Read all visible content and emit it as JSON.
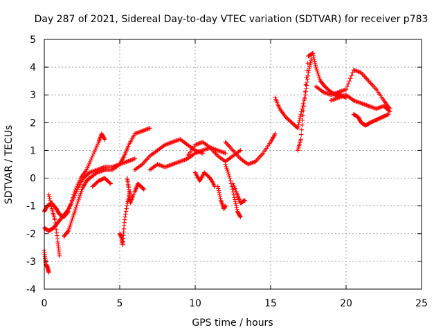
{
  "chart_data": {
    "type": "scatter",
    "title": "Day 287 of 2021, Sidereal Day-to-day VTEC variation (SDTVAR) for receiver p783",
    "xlabel": "GPS time / hours",
    "ylabel": "SDTVAR / TECUs",
    "xlim": [
      0,
      25
    ],
    "ylim": [
      -4,
      5
    ],
    "x_ticks": [
      "0",
      "5",
      "10",
      "15",
      "20",
      "25"
    ],
    "y_ticks": [
      "-4",
      "-3",
      "-2",
      "-1",
      "0",
      "1",
      "2",
      "3",
      "4",
      "5"
    ],
    "grid": true,
    "marker": "+",
    "series": [
      {
        "name": "arc-a",
        "color": "#ff0000",
        "x": [
          0.0,
          0.2,
          0.5,
          0.8,
          1.0,
          1.3,
          1.6,
          2.0,
          2.4,
          2.8,
          3.2,
          3.6,
          3.8,
          4.0
        ],
        "y": [
          -1.2,
          -1.0,
          -0.9,
          -1.1,
          -1.3,
          -1.4,
          -1.2,
          -0.5,
          0.0,
          0.3,
          0.8,
          1.3,
          1.6,
          1.4
        ]
      },
      {
        "name": "arc-b",
        "color": "#ff0000",
        "x": [
          0.0,
          0.3,
          0.6,
          0.9,
          1.2,
          1.5,
          1.8,
          2.2,
          2.6,
          3.0,
          3.5,
          4.0,
          4.5,
          5.0,
          5.5,
          6.0
        ],
        "y": [
          -1.8,
          -1.9,
          -1.8,
          -1.6,
          -1.4,
          -1.2,
          -0.9,
          -0.4,
          0.0,
          0.2,
          0.3,
          0.4,
          0.4,
          0.5,
          0.6,
          0.7
        ]
      },
      {
        "name": "arc-c",
        "color": "#ff0000",
        "x": [
          0.0,
          0.1,
          0.2,
          0.3
        ],
        "y": [
          -2.6,
          -3.1,
          -3.2,
          -3.4
        ]
      },
      {
        "name": "arc-d",
        "color": "#ff0000",
        "x": [
          0.3,
          0.5,
          0.7,
          0.9,
          1.0
        ],
        "y": [
          -0.6,
          -1.1,
          -1.5,
          -2.3,
          -2.8
        ]
      },
      {
        "name": "arc-e",
        "color": "#ff0000",
        "x": [
          1.3,
          1.6,
          1.9,
          2.2,
          2.5,
          2.8,
          3.0
        ],
        "y": [
          -2.1,
          -1.9,
          -1.4,
          -0.9,
          -0.4,
          -0.1,
          0.0
        ]
      },
      {
        "name": "arc-f",
        "color": "#ff0000",
        "x": [
          3.0,
          3.5,
          4.0,
          4.5,
          5.0,
          5.3,
          5.6,
          6.0,
          6.5,
          7.0
        ],
        "y": [
          0.0,
          0.2,
          0.3,
          0.3,
          0.5,
          0.8,
          1.2,
          1.6,
          1.7,
          1.8
        ]
      },
      {
        "name": "arc-g",
        "color": "#ff0000",
        "x": [
          3.2,
          3.6,
          4.0,
          4.4
        ],
        "y": [
          -0.3,
          -0.1,
          0.0,
          -0.2
        ]
      },
      {
        "name": "arc-h",
        "color": "#ff0000",
        "x": [
          5.0,
          5.1,
          5.2,
          5.3,
          5.5,
          5.7
        ],
        "y": [
          -2.0,
          -2.1,
          -2.4,
          -1.6,
          -0.9,
          -0.5
        ]
      },
      {
        "name": "arc-i",
        "color": "#ff0000",
        "x": [
          5.5,
          5.6,
          5.7,
          5.9
        ],
        "y": [
          0.0,
          -0.4,
          -0.9,
          -0.6
        ]
      },
      {
        "name": "arc-j",
        "color": "#ff0000",
        "x": [
          6.0,
          6.2,
          6.4,
          6.6
        ],
        "y": [
          -0.5,
          -0.2,
          -0.3,
          -0.4
        ]
      },
      {
        "name": "arc-k",
        "color": "#ff0000",
        "x": [
          6.0,
          6.5,
          7.0,
          7.5,
          8.0,
          8.5,
          9.0,
          9.5,
          10.0,
          10.5
        ],
        "y": [
          0.3,
          0.5,
          0.8,
          1.0,
          1.2,
          1.3,
          1.4,
          1.2,
          1.0,
          0.9
        ]
      },
      {
        "name": "arc-l",
        "color": "#ff0000",
        "x": [
          7.0,
          7.5,
          8.0,
          8.5,
          9.0,
          9.5,
          10.0,
          10.5,
          11.0,
          11.5,
          12.0
        ],
        "y": [
          0.3,
          0.5,
          0.4,
          0.5,
          0.6,
          0.7,
          0.9,
          1.0,
          1.1,
          1.0,
          0.9
        ]
      },
      {
        "name": "arc-m",
        "color": "#ff0000",
        "x": [
          9.5,
          10.0,
          10.5,
          11.0,
          11.5,
          12.0,
          12.5,
          13.0
        ],
        "y": [
          0.8,
          1.2,
          1.3,
          1.1,
          0.8,
          0.6,
          0.8,
          1.0
        ]
      },
      {
        "name": "arc-n",
        "color": "#ff0000",
        "x": [
          10.0,
          10.3,
          10.6,
          11.0,
          11.3
        ],
        "y": [
          0.2,
          -0.1,
          0.2,
          0.0,
          -0.3
        ]
      },
      {
        "name": "arc-o",
        "color": "#ff0000",
        "x": [
          11.5,
          11.7,
          11.9,
          12.0
        ],
        "y": [
          -0.3,
          -0.8,
          -1.1,
          -1.0
        ]
      },
      {
        "name": "arc-p",
        "color": "#ff0000",
        "x": [
          12.0,
          12.3,
          12.6,
          12.8,
          13.0
        ],
        "y": [
          0.5,
          0.0,
          -0.7,
          -1.2,
          -1.4
        ]
      },
      {
        "name": "arc-q",
        "color": "#ff0000",
        "x": [
          12.5,
          12.8,
          13.0,
          13.3
        ],
        "y": [
          -0.2,
          -0.6,
          -0.9,
          -0.8
        ]
      },
      {
        "name": "arc-r",
        "color": "#ff0000",
        "x": [
          12.0,
          12.5,
          13.0,
          13.5,
          14.0,
          14.5,
          15.0,
          15.3
        ],
        "y": [
          1.3,
          1.0,
          0.7,
          0.5,
          0.6,
          0.9,
          1.3,
          1.6
        ]
      },
      {
        "name": "arc-s",
        "color": "#ff0000",
        "x": [
          15.3,
          15.6,
          16.0,
          16.4,
          16.8,
          17.0,
          17.3,
          17.5,
          17.7
        ],
        "y": [
          2.9,
          2.5,
          2.2,
          2.0,
          1.8,
          2.3,
          3.0,
          3.8,
          4.3
        ]
      },
      {
        "name": "arc-t",
        "color": "#ff0000",
        "x": [
          16.8,
          17.0,
          17.2,
          17.5,
          17.8,
          18.0,
          18.3,
          18.6,
          19.0,
          19.3,
          19.6,
          20.0
        ],
        "y": [
          1.0,
          1.4,
          2.6,
          4.4,
          4.5,
          4.0,
          3.5,
          3.3,
          3.1,
          3.0,
          3.0,
          2.9
        ]
      },
      {
        "name": "arc-u",
        "color": "#ff0000",
        "x": [
          18.0,
          18.5,
          19.0,
          19.5,
          20.0,
          20.5,
          21.0,
          21.5,
          22.0,
          22.5,
          22.9
        ],
        "y": [
          3.3,
          3.1,
          3.0,
          3.1,
          3.2,
          3.9,
          3.8,
          3.5,
          3.2,
          2.8,
          2.5
        ]
      },
      {
        "name": "arc-v",
        "color": "#ff0000",
        "x": [
          19.0,
          19.5,
          20.0,
          20.5,
          21.0,
          21.5,
          22.0,
          22.5,
          22.9
        ],
        "y": [
          2.8,
          2.9,
          3.0,
          2.8,
          2.7,
          2.6,
          2.5,
          2.6,
          2.4
        ]
      },
      {
        "name": "arc-w",
        "color": "#ff0000",
        "x": [
          20.5,
          20.8,
          21.0,
          21.3,
          21.6,
          22.0,
          22.4,
          22.8
        ],
        "y": [
          2.3,
          2.2,
          2.0,
          1.9,
          2.0,
          2.1,
          2.2,
          2.3
        ]
      }
    ]
  }
}
